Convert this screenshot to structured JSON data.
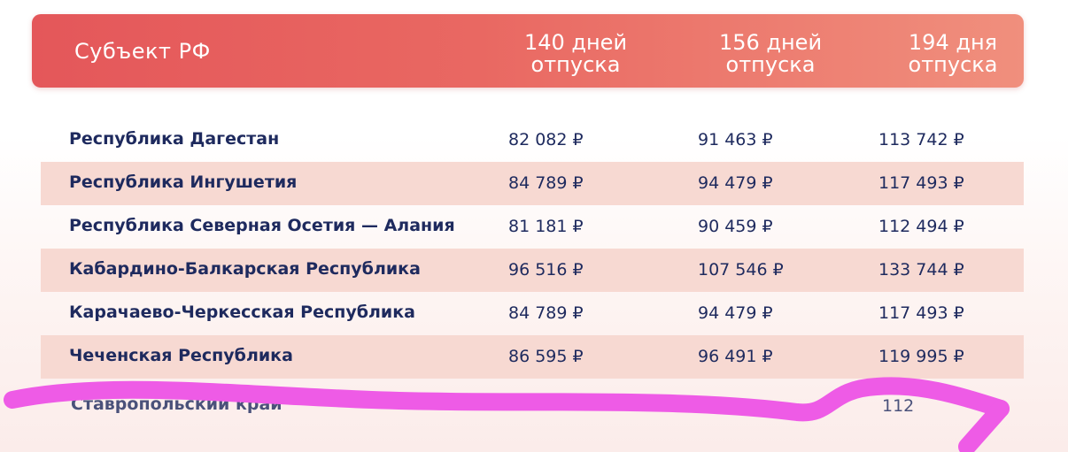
{
  "header": {
    "subject": "Субъект РФ",
    "col1_line1": "140 дней",
    "col1_line2": "отпуска",
    "col2_line1": "156 дней",
    "col2_line2": "отпуска",
    "col3_line1": "194 дня",
    "col3_line2": "отпуска"
  },
  "rows": [
    {
      "name": "Республика Дагестан",
      "v1": "82 082 ₽",
      "v2": "91 463 ₽",
      "v3": "113 742 ₽"
    },
    {
      "name": "Республика Ингушетия",
      "v1": "84 789 ₽",
      "v2": "94 479 ₽",
      "v3": "117 493 ₽"
    },
    {
      "name": "Республика Северная Осетия — Алания",
      "v1": "81 181 ₽",
      "v2": "90 459 ₽",
      "v3": "112 494 ₽"
    },
    {
      "name": "Кабардино-Балкарская Республика",
      "v1": "96 516 ₽",
      "v2": "107 546 ₽",
      "v3": "133 744 ₽"
    },
    {
      "name": "Карачаево-Черкесская Республика",
      "v1": "84 789 ₽",
      "v2": "94 479 ₽",
      "v3": "117 493 ₽"
    },
    {
      "name": "Чеченская Республика",
      "v1": "86 595 ₽",
      "v2": "96 491 ₽",
      "v3": "119 995 ₽"
    }
  ],
  "partial": {
    "name": "Ставропольский край",
    "v3": "112"
  },
  "colors": {
    "header_start": "#e4575a",
    "header_end": "#f08f7d",
    "row_shade": "#f7d9d2",
    "text_dark": "#1e2a5e",
    "scribble": "#ee5be6"
  }
}
